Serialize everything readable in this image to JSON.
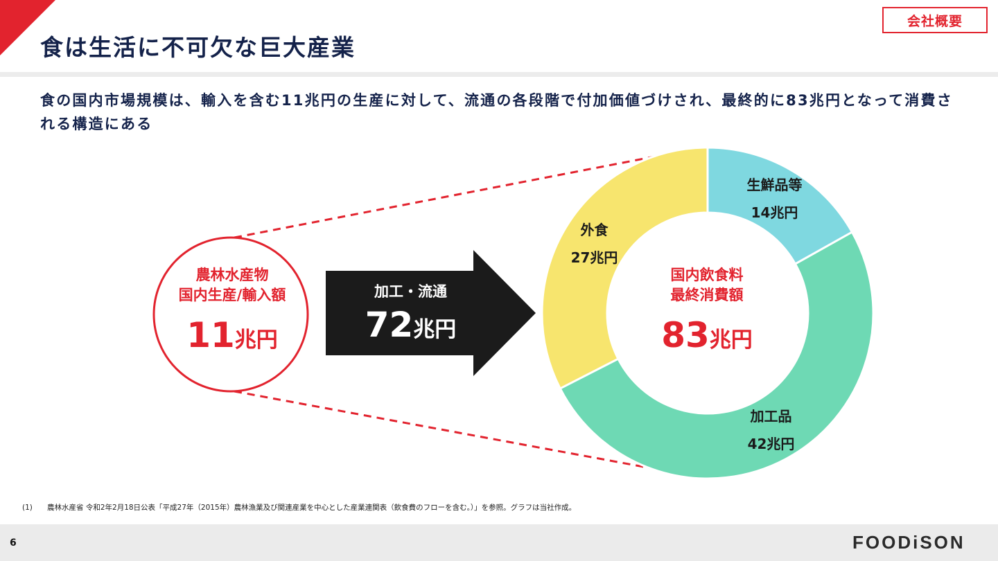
{
  "header": {
    "title": "食は生活に不可欠な巨大産業",
    "badge": "会社概要"
  },
  "lead_text": "食の国内市場規模は、輸入を含む11兆円の生産に対して、流通の各段階で付加価値づけされ、最終的に83兆円となって消費される構造にある",
  "left_circle": {
    "label_line1": "農林水産物",
    "label_line2": "国内生産/輸入額",
    "value": "11",
    "unit": "兆円"
  },
  "arrow": {
    "label": "加工・流通",
    "value": "72",
    "unit": "兆円"
  },
  "donut_center": {
    "label_line1": "国内飲食料",
    "label_line2": "最終消費額",
    "value": "83",
    "unit": "兆円"
  },
  "chart_data": {
    "type": "pie",
    "categories": [
      "生鮮品等",
      "加工品",
      "外食"
    ],
    "values": [
      14,
      42,
      27
    ],
    "value_labels": [
      "14兆円",
      "42兆円",
      "27兆円"
    ],
    "colors": [
      "#7fd8e0",
      "#6ed9b4",
      "#f7e56e"
    ]
  },
  "footnote": {
    "number": "(1)",
    "text": "農林水産省 令和2年2月18日公表「平成27年（2015年）農林漁業及び関連産業を中心とした産業連関表（飲食費のフローを含む。）」を参照。グラフは当社作成。"
  },
  "footer": {
    "page_number": "6",
    "logo": "FOODiSON"
  }
}
